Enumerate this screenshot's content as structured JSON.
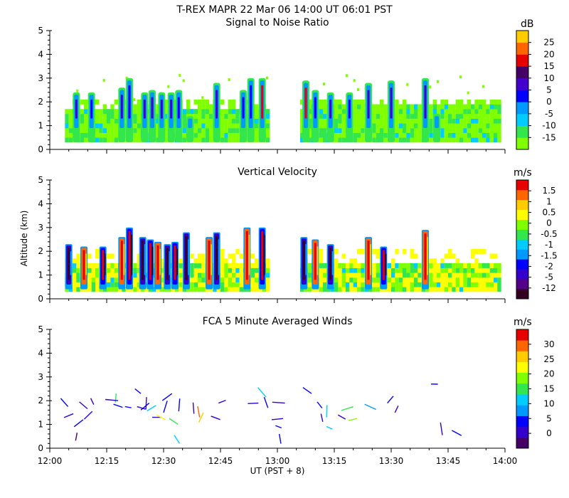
{
  "title": "T-REX   MAPR 22 Mar 06   14:00 UT   06:01   PST",
  "xaxis": {
    "label": "UT  (PST + 8)",
    "range": [
      0,
      120
    ],
    "ticks": [
      {
        "v": 0,
        "label": "12:00"
      },
      {
        "v": 15,
        "label": "12:15"
      },
      {
        "v": 30,
        "label": "12:30"
      },
      {
        "v": 45,
        "label": "12:45"
      },
      {
        "v": 60,
        "label": "13:00"
      },
      {
        "v": 75,
        "label": "13:15"
      },
      {
        "v": 90,
        "label": "13:30"
      },
      {
        "v": 105,
        "label": "13:45"
      },
      {
        "v": 120,
        "label": "14:00"
      }
    ]
  },
  "yaxis": {
    "label": "Altitude  (km)",
    "range": [
      0,
      5
    ],
    "ticks": [
      "0",
      "1",
      "2",
      "3",
      "4",
      "5"
    ]
  },
  "chart_data": [
    {
      "type": "heatmap",
      "title": "Signal to Noise Ratio",
      "unit": "dB",
      "colorbar_labels": [
        "-15",
        "-10",
        "-5",
        "0",
        "5",
        "10",
        "15",
        "20",
        "25"
      ],
      "colors": [
        "#80ff00",
        "#33e64d",
        "#00ccff",
        "#0099ff",
        "#0000ff",
        "#4400cc",
        "#440066",
        "#e60000",
        "#ff6600",
        "#ffcc00"
      ],
      "data_gaps": [
        [
          0,
          3.5
        ],
        [
          57.5,
          66
        ],
        [
          119,
          120
        ]
      ],
      "mask_top_km": 2.2,
      "columns": [
        {
          "t": 7,
          "top": 2.4,
          "peak": 5
        },
        {
          "t": 11,
          "top": 2.4,
          "peak": 4
        },
        {
          "t": 19,
          "top": 2.6,
          "peak": 5
        },
        {
          "t": 21,
          "top": 3.0,
          "peak": 4
        },
        {
          "t": 25,
          "top": 2.4,
          "peak": 5
        },
        {
          "t": 27,
          "top": 2.5,
          "peak": 5
        },
        {
          "t": 29.5,
          "top": 2.4,
          "peak": 5
        },
        {
          "t": 32,
          "top": 2.4,
          "peak": 5
        },
        {
          "t": 34,
          "top": 2.5,
          "peak": 4
        },
        {
          "t": 37,
          "top": 1.4,
          "peak": 4
        },
        {
          "t": 44,
          "top": 2.8,
          "peak": 5
        },
        {
          "t": 51,
          "top": 2.5,
          "peak": 4
        },
        {
          "t": 53,
          "top": 3.0,
          "peak": 4
        },
        {
          "t": 56,
          "top": 3.0,
          "peak": 7
        },
        {
          "t": 67.5,
          "top": 2.9,
          "peak": 7
        },
        {
          "t": 70,
          "top": 2.5,
          "peak": 4
        },
        {
          "t": 74,
          "top": 2.4,
          "peak": 5
        },
        {
          "t": 79,
          "top": 2.4,
          "peak": 4
        },
        {
          "t": 84,
          "top": 2.8,
          "peak": 5
        },
        {
          "t": 90,
          "top": 2.9,
          "peak": 5
        },
        {
          "t": 99,
          "top": 3.0,
          "peak": 5
        },
        {
          "t": 102,
          "top": 1.5,
          "peak": 4
        }
      ]
    },
    {
      "type": "heatmap",
      "title": "Vertical Velocity",
      "unit": "m/s",
      "colorbar_labels": [
        "-12",
        "-5",
        "-2",
        "-1.5",
        "-1",
        "-0.5",
        "0",
        "0.5",
        "1",
        "1.5"
      ],
      "colors": [
        "#330022",
        "#550088",
        "#3300cc",
        "#0000ff",
        "#0099ff",
        "#00ccff",
        "#33e64d",
        "#80ff00",
        "#ffff00",
        "#ffcc00",
        "#ff6600",
        "#e60000"
      ],
      "data_gaps": [
        [
          0,
          3.5
        ],
        [
          57.5,
          66
        ],
        [
          119,
          120
        ]
      ],
      "columns": [
        {
          "t": 5,
          "top": 2.3,
          "kind": "down"
        },
        {
          "t": 9,
          "top": 2.2,
          "kind": "up"
        },
        {
          "t": 14,
          "top": 2.2,
          "kind": "mixed"
        },
        {
          "t": 19,
          "top": 2.6,
          "kind": "up"
        },
        {
          "t": 21,
          "top": 3.0,
          "kind": "mixed"
        },
        {
          "t": 24.5,
          "top": 2.6,
          "kind": "down"
        },
        {
          "t": 26.5,
          "top": 2.5,
          "kind": "mixed"
        },
        {
          "t": 28.5,
          "top": 2.4,
          "kind": "up"
        },
        {
          "t": 31,
          "top": 2.3,
          "kind": "down"
        },
        {
          "t": 33,
          "top": 2.4,
          "kind": "mixed"
        },
        {
          "t": 36,
          "top": 2.8,
          "kind": "down"
        },
        {
          "t": 42,
          "top": 2.6,
          "kind": "up"
        },
        {
          "t": 44,
          "top": 2.8,
          "kind": "down"
        },
        {
          "t": 52,
          "top": 3.0,
          "kind": "up"
        },
        {
          "t": 56,
          "top": 3.0,
          "kind": "mixed"
        },
        {
          "t": 67,
          "top": 2.6,
          "kind": "down"
        },
        {
          "t": 70,
          "top": 2.5,
          "kind": "up"
        },
        {
          "t": 74,
          "top": 2.3,
          "kind": "down"
        },
        {
          "t": 84,
          "top": 2.6,
          "kind": "up"
        },
        {
          "t": 88,
          "top": 2.2,
          "kind": "mixed"
        },
        {
          "t": 99,
          "top": 2.9,
          "kind": "up"
        }
      ]
    },
    {
      "type": "scatter",
      "title": "FCA 5 Minute Averaged Winds",
      "unit": "m/s",
      "colorbar_labels": [
        "0",
        "5",
        "10",
        "15",
        "20",
        "25",
        "30"
      ],
      "colors": [
        "#440066",
        "#3300cc",
        "#0000ff",
        "#0099ff",
        "#00ccff",
        "#33e64d",
        "#80ff00",
        "#ffff00",
        "#ffcc00",
        "#ff6600",
        "#e60000"
      ],
      "barbs": [
        {
          "t": 4.8,
          "alt": 1.75,
          "speed": 5
        },
        {
          "t": 6.2,
          "alt": 1.45,
          "speed": 4
        },
        {
          "t": 7.2,
          "alt": 0.65,
          "speed": 1
        },
        {
          "t": 7.8,
          "alt": 1.95,
          "speed": 4
        },
        {
          "t": 8.8,
          "alt": 1.2,
          "speed": 5
        },
        {
          "t": 10.8,
          "alt": 2.1,
          "speed": 4
        },
        {
          "t": 11.2,
          "alt": 1.55,
          "speed": 4
        },
        {
          "t": 16.8,
          "alt": 1.85,
          "speed": 5
        },
        {
          "t": 17.5,
          "alt": 2.3,
          "speed": 14
        },
        {
          "t": 18,
          "alt": 2.0,
          "speed": 4
        },
        {
          "t": 21.5,
          "alt": 1.7,
          "speed": 5
        },
        {
          "t": 23,
          "alt": 1.75,
          "speed": 4
        },
        {
          "t": 24,
          "alt": 2.3,
          "speed": 5
        },
        {
          "t": 25.5,
          "alt": 2.15,
          "speed": 4
        },
        {
          "t": 26.2,
          "alt": 1.9,
          "speed": 5
        },
        {
          "t": 27,
          "alt": 1.3,
          "speed": 4
        },
        {
          "t": 28,
          "alt": 1.8,
          "speed": 12
        },
        {
          "t": 30,
          "alt": 1.5,
          "speed": 5
        },
        {
          "t": 30.5,
          "alt": 1.2,
          "speed": 20
        },
        {
          "t": 31.5,
          "alt": 1.25,
          "speed": 15
        },
        {
          "t": 32.2,
          "alt": 2.3,
          "speed": 5
        },
        {
          "t": 32.8,
          "alt": 0.55,
          "speed": 11
        },
        {
          "t": 34,
          "alt": 1.55,
          "speed": 5
        },
        {
          "t": 38,
          "alt": 1.45,
          "speed": 3
        },
        {
          "t": 39.5,
          "alt": 1.3,
          "speed": 26
        },
        {
          "t": 40.5,
          "alt": 1.5,
          "speed": 23
        },
        {
          "t": 42.5,
          "alt": 1.35,
          "speed": 4
        },
        {
          "t": 44.5,
          "alt": 1.9,
          "speed": 4
        },
        {
          "t": 55,
          "alt": 1.9,
          "speed": 4
        },
        {
          "t": 57,
          "alt": 2.15,
          "speed": 11
        },
        {
          "t": 57.5,
          "alt": 1.7,
          "speed": 5
        },
        {
          "t": 58.5,
          "alt": 1.2,
          "speed": 4
        },
        {
          "t": 59.5,
          "alt": 0.95,
          "speed": 5
        },
        {
          "t": 60.5,
          "alt": 0.6,
          "speed": 5
        },
        {
          "t": 62,
          "alt": 1.9,
          "speed": 4
        },
        {
          "t": 69,
          "alt": 2.3,
          "speed": 5
        },
        {
          "t": 70.5,
          "alt": 1.95,
          "speed": 5
        },
        {
          "t": 71.5,
          "alt": 1.45,
          "speed": 4
        },
        {
          "t": 73,
          "alt": 1.3,
          "speed": 11
        },
        {
          "t": 74.5,
          "alt": 0.8,
          "speed": 11
        },
        {
          "t": 76,
          "alt": 1.4,
          "speed": 4
        },
        {
          "t": 80,
          "alt": 1.75,
          "speed": 14
        },
        {
          "t": 81,
          "alt": 1.25,
          "speed": 18
        },
        {
          "t": 83,
          "alt": 1.85,
          "speed": 10
        },
        {
          "t": 89,
          "alt": 1.9,
          "speed": 5
        },
        {
          "t": 91,
          "alt": 1.5,
          "speed": 4
        },
        {
          "t": 100.5,
          "alt": 2.7,
          "speed": 5
        },
        {
          "t": 103.5,
          "alt": 0.55,
          "speed": 4
        },
        {
          "t": 106,
          "alt": 0.75,
          "speed": 5
        }
      ]
    }
  ]
}
